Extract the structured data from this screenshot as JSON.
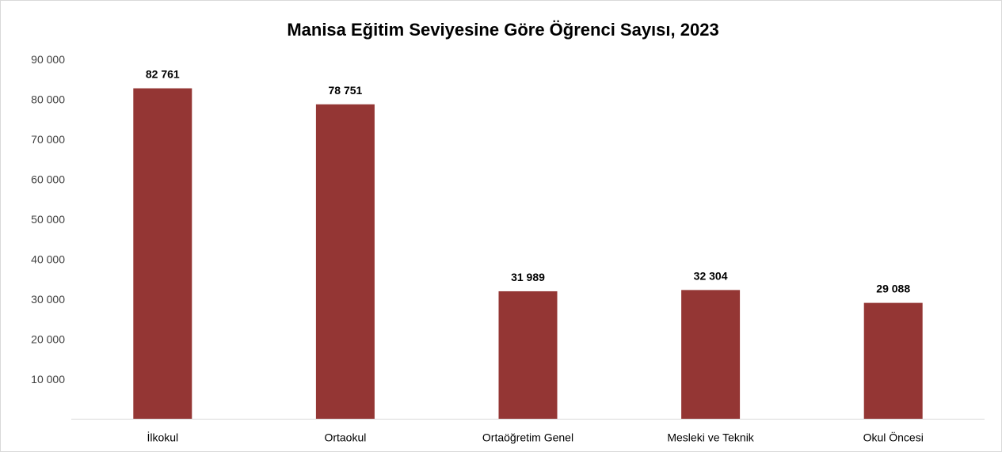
{
  "chart_data": {
    "type": "bar",
    "title": "Manisa Eğitim Seviyesine Göre Öğrenci Sayısı, 2023",
    "xlabel": "",
    "ylabel": "",
    "categories": [
      "İlkokul",
      "Ortaokul",
      "Ortaöğretim Genel",
      "Mesleki ve Teknik",
      "Okul Öncesi"
    ],
    "values": [
      82761,
      78751,
      31989,
      32304,
      29088
    ],
    "value_labels": [
      "82 761",
      "78 751",
      "31 989",
      "32 304",
      "29 088"
    ],
    "ylim": [
      0,
      90000
    ],
    "yticks": [
      10000,
      20000,
      30000,
      40000,
      50000,
      60000,
      70000,
      80000,
      90000
    ],
    "ytick_labels": [
      "10 000",
      "20 000",
      "30 000",
      "40 000",
      "50 000",
      "60 000",
      "70 000",
      "80 000",
      "90 000"
    ],
    "bar_color": "#943634",
    "grid": false,
    "legend": "none"
  }
}
